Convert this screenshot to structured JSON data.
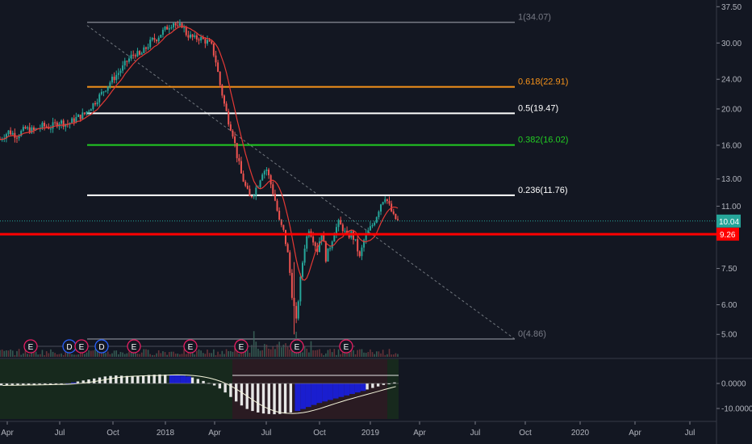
{
  "chart_data": {
    "type": "candlestick",
    "price_axis": {
      "ticks": [
        "37.50",
        "30.00",
        "24.00",
        "20.00",
        "16.00",
        "13.00",
        "11.00",
        "7.50",
        "6.00",
        "5.00"
      ],
      "scale": "log"
    },
    "time_axis": {
      "ticks": [
        "Apr",
        "Jul",
        "Oct",
        "2018",
        "Apr",
        "Jul",
        "Oct",
        "2019",
        "Apr",
        "Jul",
        "Oct",
        "2020",
        "Apr",
        "Jul"
      ]
    },
    "fib_levels": [
      {
        "label": "1(34.07)",
        "value": 34.07,
        "color": "#787b86"
      },
      {
        "label": "0.618(22.91)",
        "value": 22.91,
        "color": "#f7931a"
      },
      {
        "label": "0.5(19.47)",
        "value": 19.47,
        "color": "#ffffff"
      },
      {
        "label": "0.382(16.02)",
        "value": 16.02,
        "color": "#22cc22"
      },
      {
        "label": "0.236(11.76)",
        "value": 11.76,
        "color": "#ffffff"
      },
      {
        "label": "0(4.86)",
        "value": 4.86,
        "color": "#787b86"
      }
    ],
    "support_line": {
      "value": 9.26,
      "label": "9.26",
      "color": "#ff0000"
    },
    "last_price": {
      "value": 10.04,
      "label": "10.04",
      "color": "#26a69a"
    },
    "price_path": [
      [
        0,
        16.6
      ],
      [
        4,
        17.4
      ],
      [
        8,
        17.0
      ],
      [
        12,
        17.7
      ],
      [
        16,
        17.5
      ],
      [
        20,
        18.0
      ],
      [
        24,
        17.9
      ],
      [
        28,
        18.5
      ],
      [
        32,
        18.2
      ],
      [
        36,
        18.9
      ],
      [
        40,
        19.4
      ],
      [
        44,
        20.6
      ],
      [
        48,
        22.0
      ],
      [
        52,
        23.6
      ],
      [
        56,
        25.0
      ],
      [
        58,
        25.8
      ],
      [
        60,
        26.8
      ],
      [
        62,
        27.6
      ],
      [
        64,
        28.2
      ],
      [
        66,
        27.7
      ],
      [
        68,
        28.6
      ],
      [
        70,
        29.6
      ],
      [
        72,
        30.5
      ],
      [
        74,
        30.9
      ],
      [
        76,
        31.8
      ],
      [
        78,
        32.6
      ],
      [
        80,
        33.4
      ],
      [
        82,
        34.1
      ],
      [
        84,
        32.8
      ],
      [
        86,
        33.6
      ],
      [
        88,
        31.8
      ],
      [
        90,
        31.2
      ],
      [
        92,
        30.8
      ],
      [
        94,
        31.0
      ],
      [
        96,
        30.6
      ],
      [
        98,
        30.2
      ],
      [
        100,
        29.4
      ],
      [
        102,
        26.8
      ],
      [
        104,
        23.2
      ],
      [
        106,
        20.6
      ],
      [
        108,
        18.6
      ],
      [
        110,
        17.2
      ],
      [
        112,
        15.0
      ],
      [
        114,
        13.4
      ],
      [
        116,
        12.4
      ],
      [
        118,
        11.6
      ],
      [
        120,
        12.0
      ],
      [
        122,
        12.6
      ],
      [
        124,
        13.6
      ],
      [
        126,
        13.8
      ],
      [
        128,
        12.6
      ],
      [
        130,
        11.4
      ],
      [
        132,
        10.0
      ],
      [
        134,
        9.4
      ],
      [
        136,
        8.2
      ],
      [
        138,
        6.4
      ],
      [
        140,
        5.4
      ],
      [
        142,
        7.0
      ],
      [
        144,
        8.6
      ],
      [
        146,
        9.6
      ],
      [
        148,
        9.0
      ],
      [
        150,
        8.4
      ],
      [
        152,
        9.4
      ],
      [
        154,
        8.0
      ],
      [
        156,
        8.6
      ],
      [
        158,
        9.4
      ],
      [
        160,
        9.9
      ],
      [
        162,
        9.6
      ],
      [
        164,
        9.1
      ],
      [
        166,
        9.3
      ],
      [
        168,
        8.8
      ],
      [
        170,
        8.0
      ],
      [
        172,
        8.9
      ],
      [
        174,
        9.4
      ],
      [
        176,
        9.8
      ],
      [
        178,
        10.4
      ],
      [
        180,
        11.2
      ],
      [
        182,
        11.7
      ],
      [
        184,
        11.0
      ],
      [
        186,
        10.3
      ],
      [
        188,
        10.04
      ]
    ],
    "events": [
      {
        "label": "E",
        "type": "earnings"
      },
      {
        "label": "D",
        "type": "dividend"
      },
      {
        "label": "E",
        "type": "earnings"
      },
      {
        "label": "D",
        "type": "dividend"
      },
      {
        "label": "E",
        "type": "earnings"
      },
      {
        "label": "E",
        "type": "earnings"
      },
      {
        "label": "E",
        "type": "earnings"
      },
      {
        "label": "E",
        "type": "earnings"
      },
      {
        "label": "E",
        "type": "earnings"
      }
    ],
    "oscillator": {
      "ticks": [
        "0.0000",
        "-10.0000"
      ],
      "values": [
        -0.8,
        -0.7,
        -0.6,
        -0.6,
        -0.5,
        -0.5,
        -0.5,
        -0.4,
        -0.4,
        -0.4,
        -0.3,
        -0.2,
        0.0,
        0.4,
        0.8,
        1.2,
        1.6,
        2.0,
        2.4,
        2.8,
        3.0,
        3.2,
        3.1,
        3.0,
        2.9,
        3.0,
        3.2,
        3.4,
        3.5,
        3.6,
        3.5,
        3.4,
        3.3,
        3.1,
        2.8,
        2.4,
        1.8,
        1.0,
        0.2,
        -0.8,
        -2.0,
        -3.6,
        -5.4,
        -7.2,
        -8.8,
        -10.2,
        -11.0,
        -11.6,
        -12.0,
        -12.2,
        -12.3,
        -12.2,
        -12.0,
        -11.6,
        -11.0,
        -10.2,
        -9.4,
        -8.6,
        -7.8,
        -7.2,
        -6.6,
        -6.0,
        -5.4,
        -4.8,
        -4.2,
        -3.6,
        -3.0,
        -2.4,
        -1.8,
        -1.2,
        -0.6,
        0.0,
        0.4
      ]
    }
  }
}
